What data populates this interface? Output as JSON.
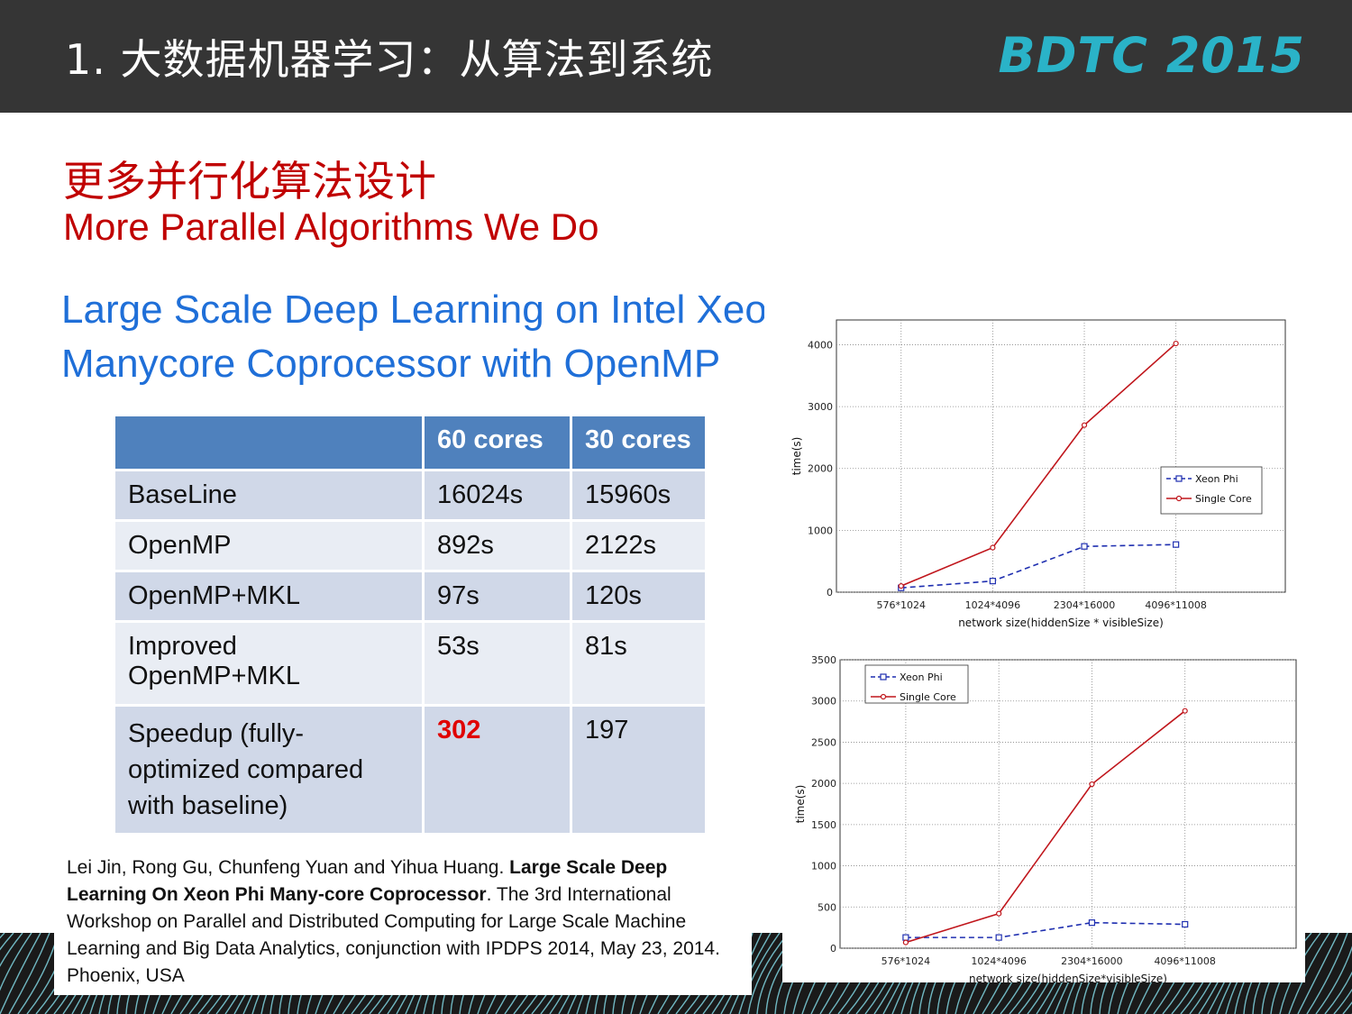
{
  "header": {
    "title": "1. 大数据机器学习：从算法到系统",
    "logo": "BDTC 2015"
  },
  "subtitle": {
    "cn": "更多并行化算法设计",
    "en": "More Parallel Algorithms We Do"
  },
  "section": {
    "line1": "Large Scale Deep Learning on Intel Xeon Phi",
    "line2": "Manycore Coprocessor with OpenMP"
  },
  "table": {
    "headers": [
      "",
      "60 cores",
      "30 cores"
    ],
    "rows": [
      [
        "BaseLine",
        "16024s",
        "15960s"
      ],
      [
        "OpenMP",
        "892s",
        "2122s"
      ],
      [
        "OpenMP+MKL",
        "97s",
        "120s"
      ],
      [
        "Improved OpenMP+MKL",
        "53s",
        "81s"
      ],
      [
        "Speedup (fully-optimized compared with baseline)",
        "302",
        "197"
      ]
    ]
  },
  "citation": {
    "authors": "Lei Jin, Rong Gu, Chunfeng Yuan and Yihua Huang. ",
    "title": "Large Scale Deep Learning On Xeon Phi Many-core Coprocessor",
    "rest": ". The 3rd International Workshop on Parallel and Distributed Computing for Large Scale Machine Learning and Big Data Analytics, conjunction with IPDPS 2014, May 23, 2014. Phoenix, USA"
  },
  "colors": {
    "header_bg": "#353535",
    "logo": "#2ab3c8",
    "subtitle": "#c00000",
    "section_title": "#1f6fd8",
    "table_header": "#4f81bd",
    "xeon_phi": "#1f2fb0",
    "single_core": "#c0161c"
  },
  "chart_data": [
    {
      "type": "line",
      "categories": [
        "576*1024",
        "1024*4096",
        "2304*16000",
        "4096*11008"
      ],
      "xlabel": "network size(hiddenSize * visibleSize)",
      "ylabel": "time(s)",
      "ylim": [
        0,
        4400
      ],
      "yticks": [
        0,
        1000,
        2000,
        3000,
        4000
      ],
      "grid": true,
      "legend": "right",
      "series": [
        {
          "name": "Xeon Phi",
          "values": [
            70,
            180,
            740,
            770
          ],
          "style": "dashed-square"
        },
        {
          "name": "Single Core",
          "values": [
            100,
            720,
            2700,
            4020
          ],
          "style": "solid-dot"
        }
      ]
    },
    {
      "type": "line",
      "categories": [
        "576*1024",
        "1024*4096",
        "2304*16000",
        "4096*11008"
      ],
      "xlabel": "network size(hiddenSize*visibleSize)",
      "ylabel": "time(s)",
      "ylim": [
        0,
        3500
      ],
      "yticks": [
        0,
        500,
        1000,
        1500,
        2000,
        2500,
        3000,
        3500
      ],
      "grid": true,
      "legend": "top-left",
      "series": [
        {
          "name": "Xeon Phi",
          "values": [
            130,
            130,
            310,
            290
          ],
          "style": "dashed-square"
        },
        {
          "name": "Single Core",
          "values": [
            70,
            420,
            1990,
            2880
          ],
          "style": "solid-dot"
        }
      ]
    }
  ]
}
